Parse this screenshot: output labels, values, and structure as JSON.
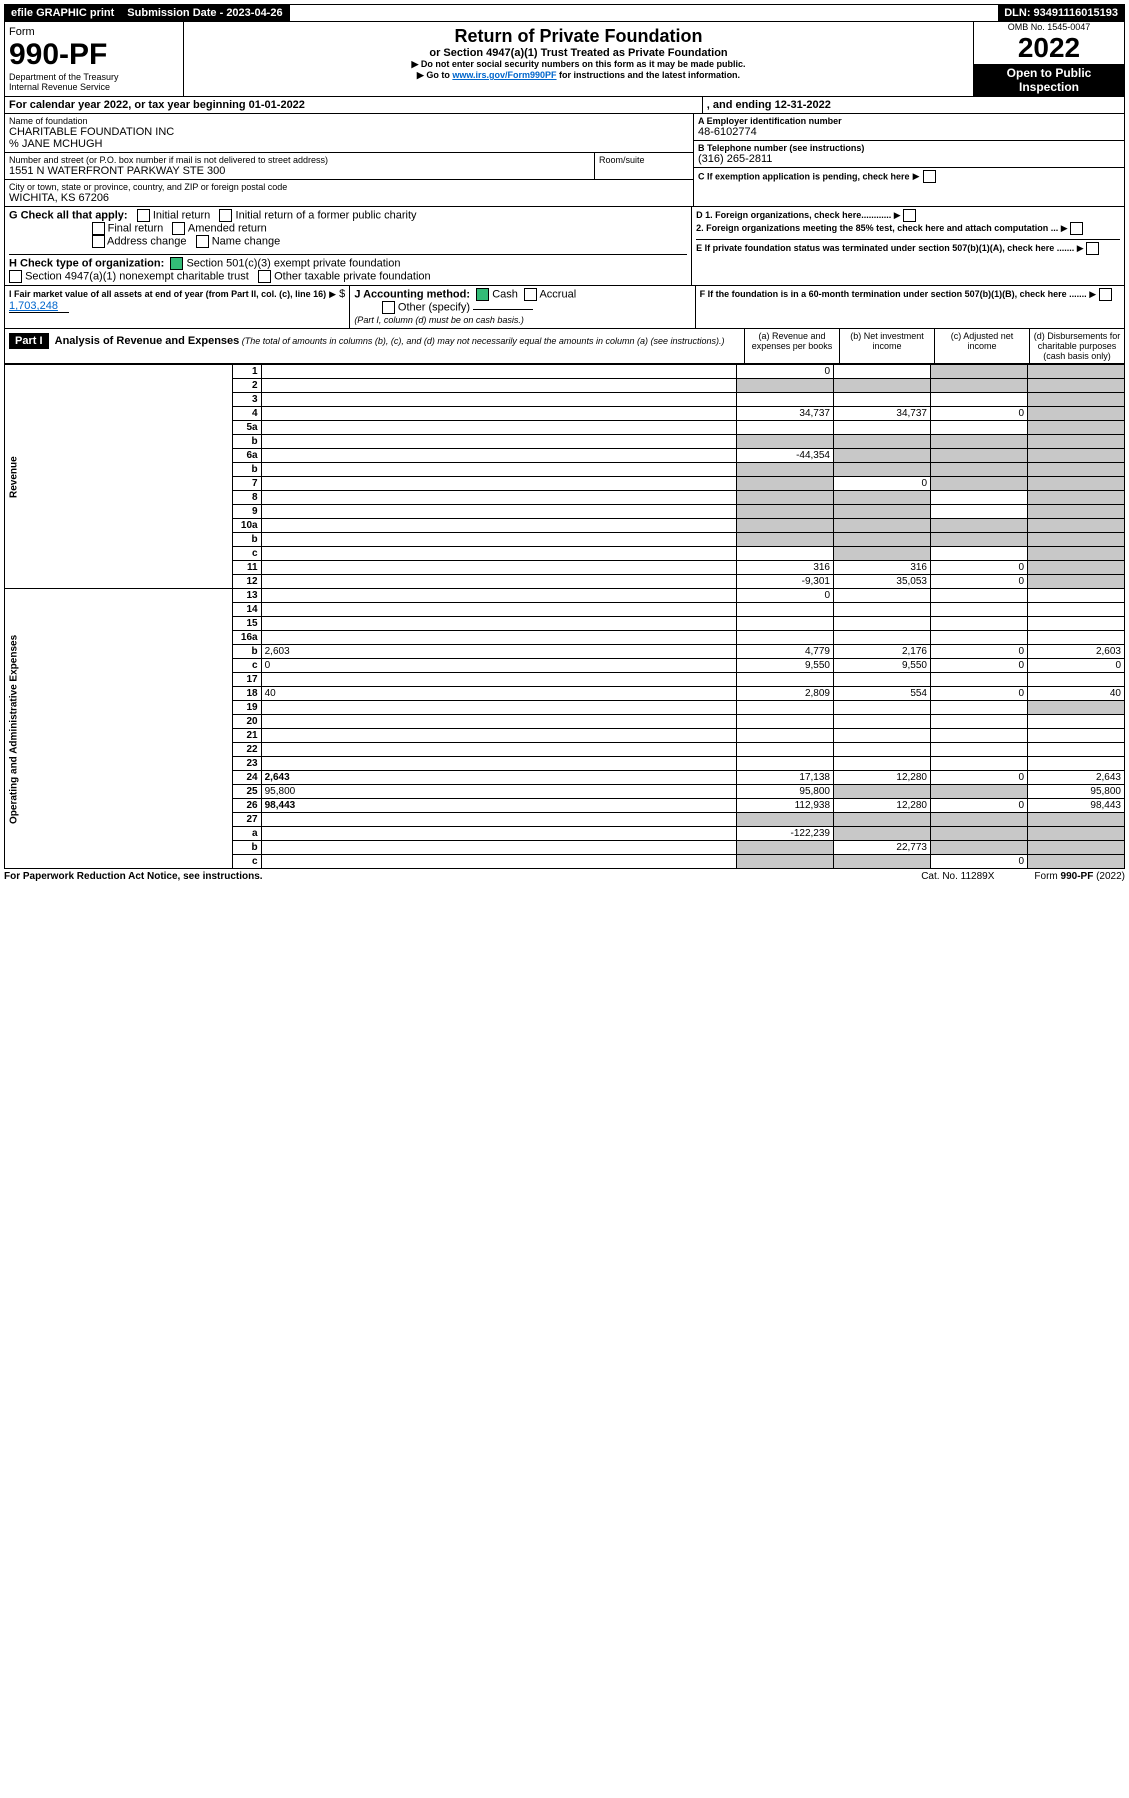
{
  "topbar": {
    "efile": "efile GRAPHIC print",
    "submission_label": "Submission Date - 2023-04-26",
    "dln": "DLN: 93491116015193"
  },
  "header": {
    "form_label": "Form",
    "form_no": "990-PF",
    "dept": "Department of the Treasury",
    "irs": "Internal Revenue Service",
    "title": "Return of Private Foundation",
    "subtitle": "or Section 4947(a)(1) Trust Treated as Private Foundation",
    "note1": "▶ Do not enter social security numbers on this form as it may be made public.",
    "note2_a": "▶ Go to ",
    "note2_link": "www.irs.gov/Form990PF",
    "note2_b": " for instructions and the latest information.",
    "omb": "OMB No. 1545-0047",
    "year": "2022",
    "open": "Open to Public Inspection"
  },
  "cal": {
    "text_a": "For calendar year 2022, or tax year beginning 01-01-2022",
    "text_b": ", and ending 12-31-2022"
  },
  "id": {
    "name_label": "Name of foundation",
    "name": "CHARITABLE FOUNDATION INC",
    "care_of": "% JANE MCHUGH",
    "addr_label": "Number and street (or P.O. box number if mail is not delivered to street address)",
    "addr": "1551 N WATERFRONT PARKWAY STE 300",
    "room_label": "Room/suite",
    "city_label": "City or town, state or province, country, and ZIP or foreign postal code",
    "city": "WICHITA, KS  67206",
    "a_label": "A Employer identification number",
    "a_val": "48-6102774",
    "b_label": "B Telephone number (see instructions)",
    "b_val": "(316) 265-2811",
    "c_label": "C If exemption application is pending, check here"
  },
  "checks": {
    "g_label": "G Check all that apply:",
    "g1": "Initial return",
    "g2": "Initial return of a former public charity",
    "g3": "Final return",
    "g4": "Amended return",
    "g5": "Address change",
    "g6": "Name change",
    "h_label": "H Check type of organization:",
    "h1": "Section 501(c)(3) exempt private foundation",
    "h2": "Section 4947(a)(1) nonexempt charitable trust",
    "h3": "Other taxable private foundation",
    "i_label": "I Fair market value of all assets at end of year (from Part II, col. (c), line 16)",
    "i_val": "1,703,248",
    "j_label": "J Accounting method:",
    "j1": "Cash",
    "j2": "Accrual",
    "j3": "Other (specify)",
    "j_note": "(Part I, column (d) must be on cash basis.)",
    "d1": "D 1. Foreign organizations, check here............",
    "d2": "2. Foreign organizations meeting the 85% test, check here and attach computation ...",
    "e": "E  If private foundation status was terminated under section 507(b)(1)(A), check here .......",
    "f": "F  If the foundation is in a 60-month termination under section 507(b)(1)(B), check here ......."
  },
  "part1": {
    "label": "Part I",
    "title": "Analysis of Revenue and Expenses",
    "title_note": " (The total of amounts in columns (b), (c), and (d) may not necessarily equal the amounts in column (a) (see instructions).)",
    "col_a": "(a)  Revenue and expenses per books",
    "col_b": "(b)  Net investment income",
    "col_c": "(c)  Adjusted net income",
    "col_d": "(d)  Disbursements for charitable purposes (cash basis only)"
  },
  "sections": {
    "revenue": "Revenue",
    "expenses": "Operating and Administrative Expenses"
  },
  "rows": [
    {
      "n": "1",
      "d": "",
      "a": "0",
      "b": "",
      "c": "",
      "shade": [
        "c",
        "d"
      ]
    },
    {
      "n": "2",
      "d": "",
      "a": "",
      "b": "",
      "c": "",
      "shade": [
        "a",
        "b",
        "c",
        "d"
      ]
    },
    {
      "n": "3",
      "d": "",
      "a": "",
      "b": "",
      "c": "",
      "shade": [
        "d"
      ]
    },
    {
      "n": "4",
      "d": "",
      "a": "34,737",
      "b": "34,737",
      "c": "0",
      "shade": [
        "d"
      ]
    },
    {
      "n": "5a",
      "d": "",
      "a": "",
      "b": "",
      "c": "",
      "shade": [
        "d"
      ]
    },
    {
      "n": "b",
      "d": "",
      "a": "",
      "b": "",
      "c": "",
      "shade": [
        "a",
        "b",
        "c",
        "d"
      ]
    },
    {
      "n": "6a",
      "d": "",
      "a": "-44,354",
      "b": "",
      "c": "",
      "shade": [
        "b",
        "c",
        "d"
      ]
    },
    {
      "n": "b",
      "d": "",
      "a": "",
      "b": "",
      "c": "",
      "shade": [
        "a",
        "b",
        "c",
        "d"
      ]
    },
    {
      "n": "7",
      "d": "",
      "a": "",
      "b": "0",
      "c": "",
      "shade": [
        "a",
        "c",
        "d"
      ]
    },
    {
      "n": "8",
      "d": "",
      "a": "",
      "b": "",
      "c": "",
      "shade": [
        "a",
        "b",
        "d"
      ]
    },
    {
      "n": "9",
      "d": "",
      "a": "",
      "b": "",
      "c": "",
      "shade": [
        "a",
        "b",
        "d"
      ]
    },
    {
      "n": "10a",
      "d": "",
      "a": "",
      "b": "",
      "c": "",
      "shade": [
        "a",
        "b",
        "c",
        "d"
      ]
    },
    {
      "n": "b",
      "d": "",
      "a": "",
      "b": "",
      "c": "",
      "shade": [
        "a",
        "b",
        "c",
        "d"
      ]
    },
    {
      "n": "c",
      "d": "",
      "a": "",
      "b": "",
      "c": "",
      "shade": [
        "b",
        "d"
      ]
    },
    {
      "n": "11",
      "d": "",
      "a": "316",
      "b": "316",
      "c": "0",
      "shade": [
        "d"
      ]
    },
    {
      "n": "12",
      "d": "",
      "a": "-9,301",
      "b": "35,053",
      "c": "0",
      "shade": [
        "d"
      ],
      "bold": true
    },
    {
      "n": "13",
      "d": "",
      "a": "0",
      "b": "",
      "c": ""
    },
    {
      "n": "14",
      "d": "",
      "a": "",
      "b": "",
      "c": ""
    },
    {
      "n": "15",
      "d": "",
      "a": "",
      "b": "",
      "c": ""
    },
    {
      "n": "16a",
      "d": "",
      "a": "",
      "b": "",
      "c": ""
    },
    {
      "n": "b",
      "d": "2,603",
      "a": "4,779",
      "b": "2,176",
      "c": "0"
    },
    {
      "n": "c",
      "d": "0",
      "a": "9,550",
      "b": "9,550",
      "c": "0"
    },
    {
      "n": "17",
      "d": "",
      "a": "",
      "b": "",
      "c": ""
    },
    {
      "n": "18",
      "d": "40",
      "a": "2,809",
      "b": "554",
      "c": "0"
    },
    {
      "n": "19",
      "d": "",
      "a": "",
      "b": "",
      "c": "",
      "shade": [
        "d"
      ]
    },
    {
      "n": "20",
      "d": "",
      "a": "",
      "b": "",
      "c": ""
    },
    {
      "n": "21",
      "d": "",
      "a": "",
      "b": "",
      "c": ""
    },
    {
      "n": "22",
      "d": "",
      "a": "",
      "b": "",
      "c": ""
    },
    {
      "n": "23",
      "d": "",
      "a": "",
      "b": "",
      "c": ""
    },
    {
      "n": "24",
      "d": "2,643",
      "a": "17,138",
      "b": "12,280",
      "c": "0",
      "bold": true
    },
    {
      "n": "25",
      "d": "95,800",
      "a": "95,800",
      "b": "",
      "c": "",
      "shade": [
        "b",
        "c"
      ]
    },
    {
      "n": "26",
      "d": "98,443",
      "a": "112,938",
      "b": "12,280",
      "c": "0",
      "bold": true
    },
    {
      "n": "27",
      "d": "",
      "a": "",
      "b": "",
      "c": "",
      "shade": [
        "a",
        "b",
        "c",
        "d"
      ]
    },
    {
      "n": "a",
      "d": "",
      "a": "-122,239",
      "b": "",
      "c": "",
      "shade": [
        "b",
        "c",
        "d"
      ],
      "bold": true
    },
    {
      "n": "b",
      "d": "",
      "a": "",
      "b": "22,773",
      "c": "",
      "shade": [
        "a",
        "c",
        "d"
      ],
      "bold": true
    },
    {
      "n": "c",
      "d": "",
      "a": "",
      "b": "",
      "c": "0",
      "shade": [
        "a",
        "b",
        "d"
      ],
      "bold": true
    }
  ],
  "footer": {
    "left": "For Paperwork Reduction Act Notice, see instructions.",
    "center": "Cat. No. 11289X",
    "right": "Form 990-PF (2022)"
  }
}
